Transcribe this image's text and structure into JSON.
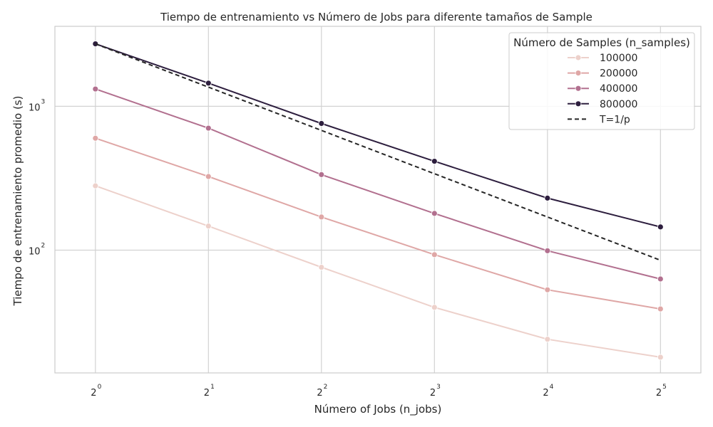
{
  "chart_data": {
    "type": "line",
    "title": "Tiempo de entrenamiento vs Número de Jobs para diferente tamaños de Sample",
    "xlabel": "Número of Jobs (n_jobs)",
    "ylabel": "Tiempo de entrenamiento promedio (s)",
    "x_scale": "log2",
    "y_scale": "log10",
    "x": [
      1,
      2,
      4,
      8,
      16,
      32
    ],
    "x_tick_labels": [
      {
        "base": "2",
        "exp": "0"
      },
      {
        "base": "2",
        "exp": "1"
      },
      {
        "base": "2",
        "exp": "2"
      },
      {
        "base": "2",
        "exp": "3"
      },
      {
        "base": "2",
        "exp": "4"
      },
      {
        "base": "2",
        "exp": "5"
      }
    ],
    "y_tick_labels": [
      {
        "value": 100,
        "base": "10",
        "exp": "2"
      },
      {
        "value": 1000,
        "base": "10",
        "exp": "3"
      }
    ],
    "ylim": [
      14,
      3600
    ],
    "xlim": [
      0.78,
      41
    ],
    "grid": true,
    "legend": {
      "title": "Número de Samples (n_samples)",
      "position": "top-right"
    },
    "series": [
      {
        "name": "100000",
        "color": "#edd1cb",
        "style": "solid",
        "marker": true,
        "values": [
          280,
          147,
          76,
          40,
          24,
          18
        ]
      },
      {
        "name": "200000",
        "color": "#dfa7a6",
        "style": "solid",
        "marker": true,
        "values": [
          600,
          325,
          170,
          93,
          53,
          39
        ]
      },
      {
        "name": "400000",
        "color": "#b2708f",
        "style": "solid",
        "marker": true,
        "values": [
          1320,
          705,
          335,
          180,
          99,
          63
        ]
      },
      {
        "name": "800000",
        "color": "#2d1e3e",
        "style": "solid",
        "marker": true,
        "values": [
          2720,
          1450,
          760,
          415,
          230,
          145
        ]
      },
      {
        "name": "T=1/p",
        "color": "#262626",
        "style": "dashed",
        "marker": false,
        "values": [
          2720,
          1360,
          680,
          340,
          170,
          85
        ]
      }
    ]
  }
}
